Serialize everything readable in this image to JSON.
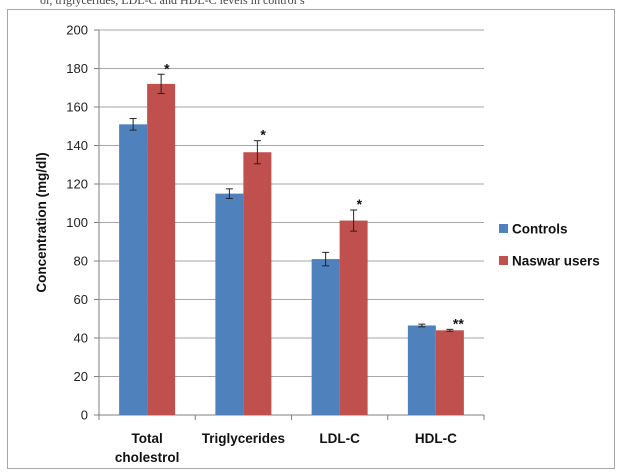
{
  "header": {
    "partial_text": "ol, triglycerides, LDL-C and HDL-C levels in control s"
  },
  "chart_data": {
    "type": "bar",
    "title": "",
    "ylabel": "Concentration (mg/dl)",
    "xlabel": "",
    "ylim": [
      0,
      200
    ],
    "yticks": [
      0,
      20,
      40,
      60,
      80,
      100,
      120,
      140,
      160,
      180,
      200
    ],
    "grid": true,
    "legend_position": "right",
    "categories": [
      [
        "Total",
        "cholestrol"
      ],
      [
        "Triglycerides"
      ],
      [
        "LDL-C"
      ],
      [
        "HDL-C"
      ]
    ],
    "series": [
      {
        "name": "Controls",
        "color": "#4f81bd",
        "values": [
          151,
          115,
          81,
          46.5
        ],
        "errors": [
          3,
          2.5,
          3.5,
          0.7
        ],
        "significance": [
          "",
          "",
          "",
          ""
        ]
      },
      {
        "name": "Naswar users",
        "color": "#c0504d",
        "values": [
          172,
          136.5,
          101,
          44
        ],
        "errors": [
          5,
          6,
          5.5,
          0.5
        ],
        "significance": [
          "*",
          "*",
          "*",
          "**"
        ]
      }
    ]
  }
}
